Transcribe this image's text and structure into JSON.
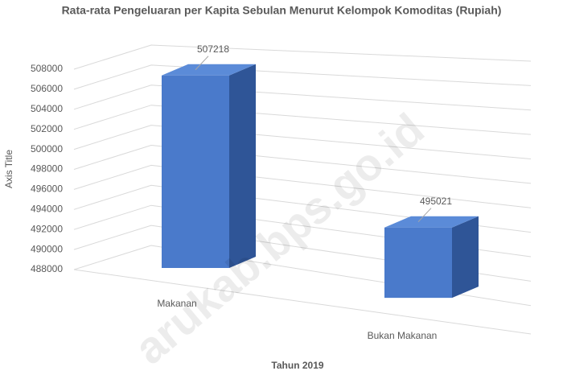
{
  "chart_data": {
    "type": "bar3d",
    "title": "Rata-rata Pengeluaran per Kapita Sebulan Menurut Kelompok Komoditas (Rupiah)",
    "x_label": "Tahun 2019",
    "y_label": "Axis Title",
    "categories": [
      "Makanan",
      "Bukan Makanan"
    ],
    "values": [
      507218,
      495021
    ],
    "color": "#4a7acb",
    "ylim": [
      488000,
      508000
    ],
    "yticks": [
      488000,
      490000,
      492000,
      494000,
      496000,
      498000,
      500000,
      502000,
      504000,
      506000,
      508000
    ],
    "grid": true,
    "watermark": "arukab.bps.go.id"
  }
}
